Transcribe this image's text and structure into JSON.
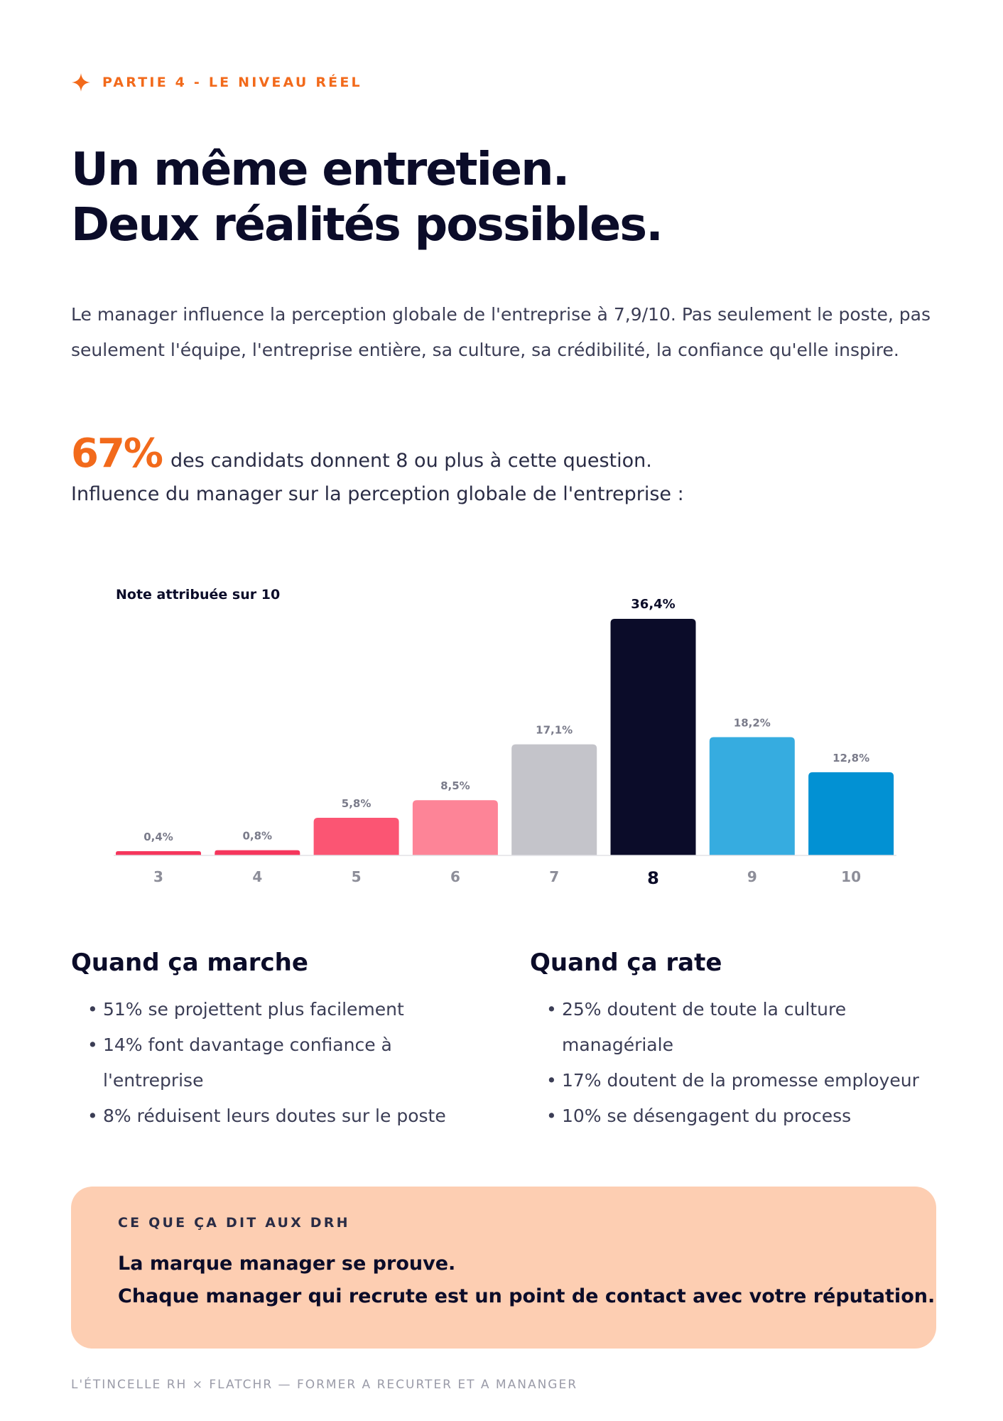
{
  "section": {
    "icon": "sparkle-icon",
    "label": "PARTIE 4 - LE NIVEAU RÉEL",
    "accent": "#f26a1b"
  },
  "headline": {
    "line1": "Un même entretien.",
    "line2": "Deux réalités possibles."
  },
  "intro": "Le manager influence la perception globale de l'entreprise à 7,9/10. Pas seulement le poste, pas seulement l'équipe, l'entreprise entière, sa culture, sa crédibilité, la confiance qu'elle inspire.",
  "stat": {
    "value": "67%",
    "text": "des candidats donnent 8 ou plus à cette question."
  },
  "chart_intro": "Influence du manager sur la perception globale de l'entreprise :",
  "chart_data": {
    "type": "bar",
    "title": "Note attribuée sur 10",
    "xlabel": "",
    "ylabel": "",
    "categories": [
      "3",
      "4",
      "5",
      "6",
      "7",
      "8",
      "9",
      "10"
    ],
    "values": [
      0.4,
      0.8,
      5.8,
      8.5,
      17.1,
      36.4,
      18.2,
      12.8
    ],
    "labels": [
      "0,4%",
      "0,8%",
      "5,8%",
      "8,5%",
      "17,1%",
      "36,4%",
      "18,2%",
      "12,8%"
    ],
    "colors": [
      "#f5365c",
      "#f5365c",
      "#fb5573",
      "#fd8497",
      "#c4c4ca",
      "#0b0c29",
      "#36ace0",
      "#0291d3"
    ],
    "highlight_index": 5,
    "ylim": [
      0,
      36.4
    ],
    "grid": false,
    "legend": "none"
  },
  "columns": {
    "left": {
      "title": "Quand ça marche",
      "items": [
        "51% se projettent plus facilement",
        "14% font davantage confiance à l'entreprise",
        "8% réduisent leurs doutes sur le poste"
      ]
    },
    "right": {
      "title": "Quand ça rate",
      "items": [
        "25% doutent de toute la culture managériale",
        "17% doutent de la promesse employeur",
        "10% se désengagent du process"
      ]
    }
  },
  "callout": {
    "tag": "CE QUE ÇA DIT AUX DRH",
    "line1": "La marque manager se prouve.",
    "line2": "Chaque manager qui recrute est un point de contact avec votre réputation.",
    "background": "#fdceb2"
  },
  "footer": "L'ÉTINCELLE RH × FLATCHR — FORMER A RECURTER ET A MANANGER"
}
